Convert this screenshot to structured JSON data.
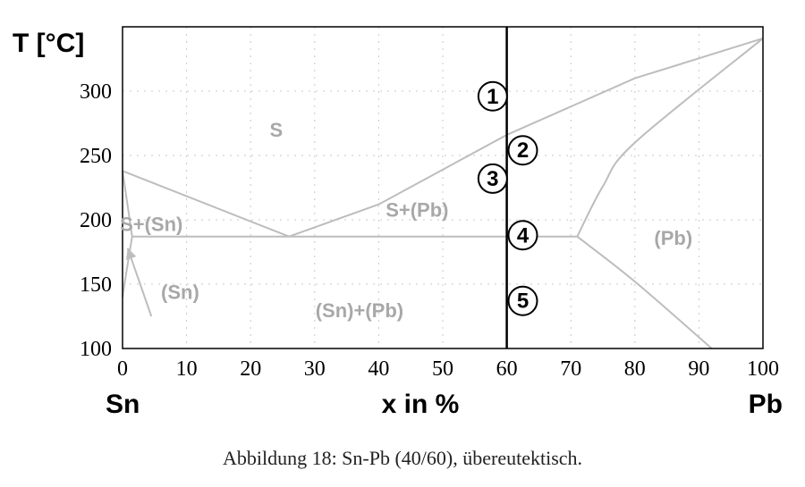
{
  "chart_data": {
    "type": "phase-diagram",
    "ylabel": "T [°C]",
    "xlabel": "x  in %",
    "x_left_label": "Sn",
    "x_right_label": "Pb",
    "xlim": [
      0,
      100
    ],
    "ylim": [
      100,
      350
    ],
    "x_ticks": [
      "0",
      "10",
      "20",
      "30",
      "40",
      "50",
      "60",
      "70",
      "80",
      "90",
      "100"
    ],
    "y_ticks": [
      "100",
      "150",
      "200",
      "250",
      "300"
    ],
    "grid": true,
    "composition_line_x": 60,
    "regions": [
      {
        "label": "S",
        "x": 24,
        "y": 270
      },
      {
        "label": "S+(Sn)",
        "x": 4.5,
        "y": 197
      },
      {
        "label": "S+(Pb)",
        "x": 46,
        "y": 208
      },
      {
        "label": "(Sn)",
        "x": 9,
        "y": 144
      },
      {
        "label": "(Sn)+(Pb)",
        "x": 37,
        "y": 130
      },
      {
        "label": "(Pb)",
        "x": 86,
        "y": 186
      }
    ],
    "markers": [
      {
        "label": "1",
        "x": 57.8,
        "y": 296
      },
      {
        "label": "2",
        "x": 62.5,
        "y": 254
      },
      {
        "label": "3",
        "x": 57.8,
        "y": 232
      },
      {
        "label": "4",
        "x": 62.5,
        "y": 188
      },
      {
        "label": "5",
        "x": 62.5,
        "y": 137
      }
    ],
    "lines": {
      "liquidus_sn": [
        [
          0,
          238
        ],
        [
          26,
          187
        ]
      ],
      "liquidus_pb": [
        [
          26,
          187
        ],
        [
          40,
          212
        ],
        [
          60,
          266
        ],
        [
          80,
          310
        ],
        [
          100,
          341
        ]
      ],
      "eutectic": [
        [
          1.5,
          187
        ],
        [
          71,
          187
        ]
      ],
      "solidus_pb": [
        [
          71,
          187
        ],
        [
          75,
          226
        ],
        [
          80,
          260
        ],
        [
          100,
          341
        ]
      ],
      "solvus_pb": [
        [
          71,
          187
        ],
        [
          80,
          152
        ],
        [
          92,
          100
        ]
      ],
      "solidus_sn": [
        [
          0,
          238
        ],
        [
          1.5,
          187
        ]
      ],
      "solvus_sn": [
        [
          1.5,
          187
        ],
        [
          0.3,
          150
        ],
        [
          0,
          140
        ]
      ],
      "pointer": [
        [
          4.5,
          125
        ],
        [
          0.8,
          178
        ]
      ]
    }
  },
  "caption": "Abbildung 18: Sn-Pb (40/60), übereutektisch."
}
